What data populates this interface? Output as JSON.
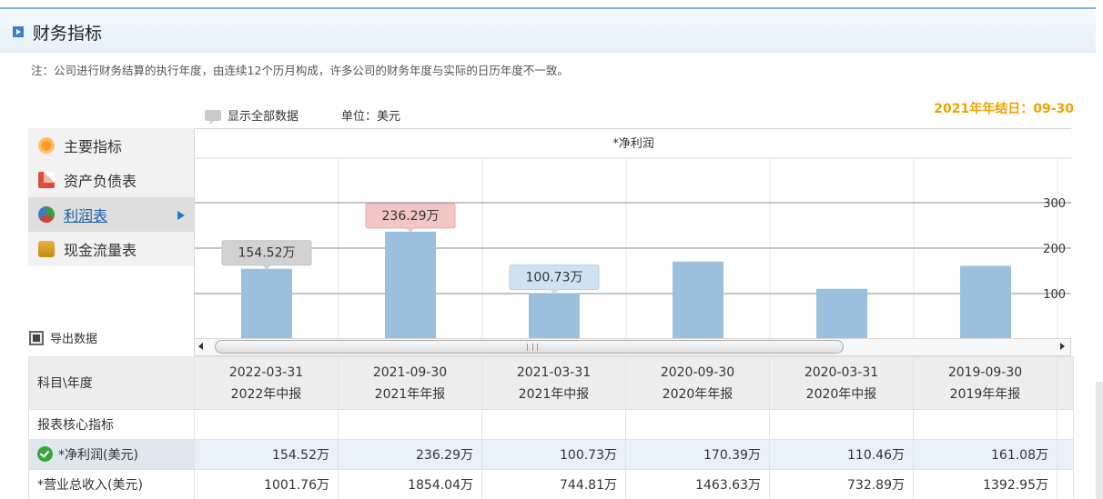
{
  "header": {
    "title": "财务指标"
  },
  "note": "注：公司进行财务结算的执行年度，由连续12个历月构成，许多公司的财务年度与实际的日历年度不一致。",
  "fiscal_year_end": "2021年年结日：09-30",
  "toolbar": {
    "show_all_label": "显示全部数据",
    "unit_label": "单位：美元"
  },
  "sidebar": {
    "items": [
      {
        "label": "主要指标",
        "icon": "flower-icon",
        "active": false
      },
      {
        "label": "资产负债表",
        "icon": "document-icon",
        "active": false
      },
      {
        "label": "利润表",
        "icon": "pie-chart-icon",
        "active": true
      },
      {
        "label": "现金流量表",
        "icon": "coins-icon",
        "active": false
      }
    ],
    "export_label": "导出数据"
  },
  "chart_data": {
    "type": "bar",
    "title": "*净利润",
    "categories": [
      "2022-03-31",
      "2021-09-30",
      "2021-03-31",
      "2020-09-30",
      "2020-03-31",
      "2019-09-30"
    ],
    "values": [
      154.52,
      236.29,
      100.73,
      170.39,
      110.46,
      161.08
    ],
    "y_ticks": [
      "100",
      "200",
      "300"
    ],
    "ylim": [
      0,
      300
    ],
    "bar_color": "#9ac0dd",
    "tooltips": [
      {
        "index": 0,
        "text": "154.52万",
        "style": "gray"
      },
      {
        "index": 1,
        "text": "236.29万",
        "style": "red"
      },
      {
        "index": 2,
        "text": "100.73万",
        "style": "blue"
      }
    ]
  },
  "table": {
    "corner_label": "科目\\年度",
    "columns": [
      {
        "date": "2022-03-31",
        "report": "2022年中报"
      },
      {
        "date": "2021-09-30",
        "report": "2021年年报"
      },
      {
        "date": "2021-03-31",
        "report": "2021年中报"
      },
      {
        "date": "2020-09-30",
        "report": "2020年年报"
      },
      {
        "date": "2020-03-31",
        "report": "2020年中报"
      },
      {
        "date": "2019-09-30",
        "report": "2019年年报"
      }
    ],
    "section_label": "报表核心指标",
    "rows": [
      {
        "label": "*净利润(美元)",
        "values": [
          "154.52万",
          "236.29万",
          "100.73万",
          "170.39万",
          "110.46万",
          "161.08万"
        ]
      },
      {
        "label": "*营业总收入(美元)",
        "values": [
          "1001.76万",
          "1854.04万",
          "744.81万",
          "1463.63万",
          "732.89万",
          "1392.95万"
        ]
      }
    ]
  }
}
